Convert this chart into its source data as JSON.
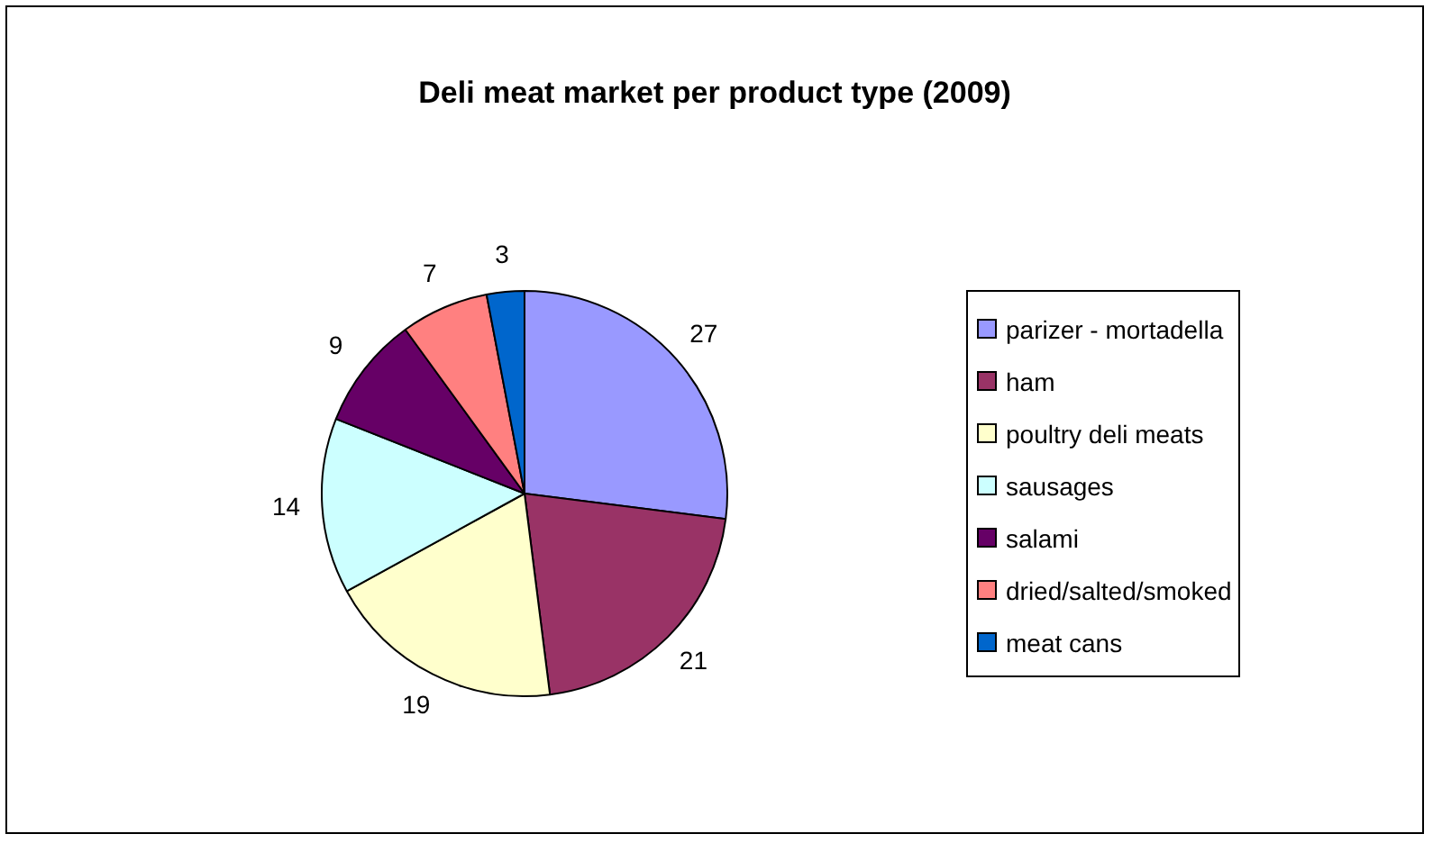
{
  "chart_data": {
    "type": "pie",
    "title": "Deli meat market per product type (2009)",
    "categories": [
      "parizer - mortadella",
      "ham",
      "poultry deli meats",
      "sausages",
      "salami",
      "dried/salted/smoked",
      "meat cans"
    ],
    "values": [
      27,
      21,
      19,
      14,
      9,
      7,
      3
    ],
    "colors": [
      "#9999ff",
      "#993366",
      "#ffffcc",
      "#ccffff",
      "#660066",
      "#ff8080",
      "#0066cc"
    ],
    "data_labels": true,
    "legend": "right"
  }
}
